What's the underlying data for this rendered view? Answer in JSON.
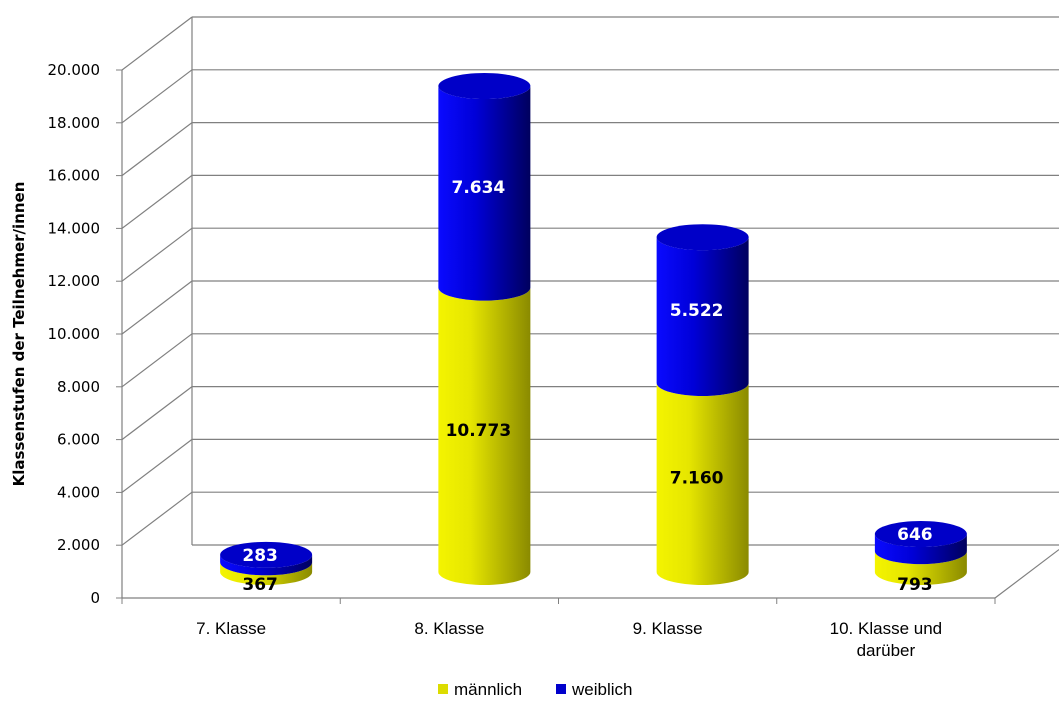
{
  "chart_data": {
    "type": "bar",
    "title": "",
    "xlabel": "",
    "ylabel": "Klassenstufen der Teilnehmer/innen",
    "ylim": [
      0,
      20000
    ],
    "yticks": [
      0,
      2000,
      4000,
      6000,
      8000,
      10000,
      12000,
      14000,
      16000,
      18000,
      20000
    ],
    "ytick_labels": [
      "0",
      "2.000",
      "4.000",
      "6.000",
      "8.000",
      "10.000",
      "12.000",
      "14.000",
      "16.000",
      "18.000",
      "20.000"
    ],
    "categories": [
      [
        "7. Klasse"
      ],
      [
        "8. Klasse"
      ],
      [
        "9. Klasse"
      ],
      [
        "10. Klasse und",
        "darüber"
      ]
    ],
    "stacked": true,
    "grid": true,
    "legend_position": "bottom",
    "series": [
      {
        "name": "männlich",
        "values": [
          367,
          10773,
          7160,
          793
        ],
        "labels": [
          "367",
          "10.773",
          "7.160",
          "793"
        ],
        "color": "#dcdc00",
        "label_color": "#000000"
      },
      {
        "name": "weiblich",
        "values": [
          283,
          7634,
          5522,
          646
        ],
        "labels": [
          "283",
          "7.634",
          "5.522",
          "646"
        ],
        "color": "#0000cc",
        "label_color": "#ffffff"
      }
    ]
  }
}
